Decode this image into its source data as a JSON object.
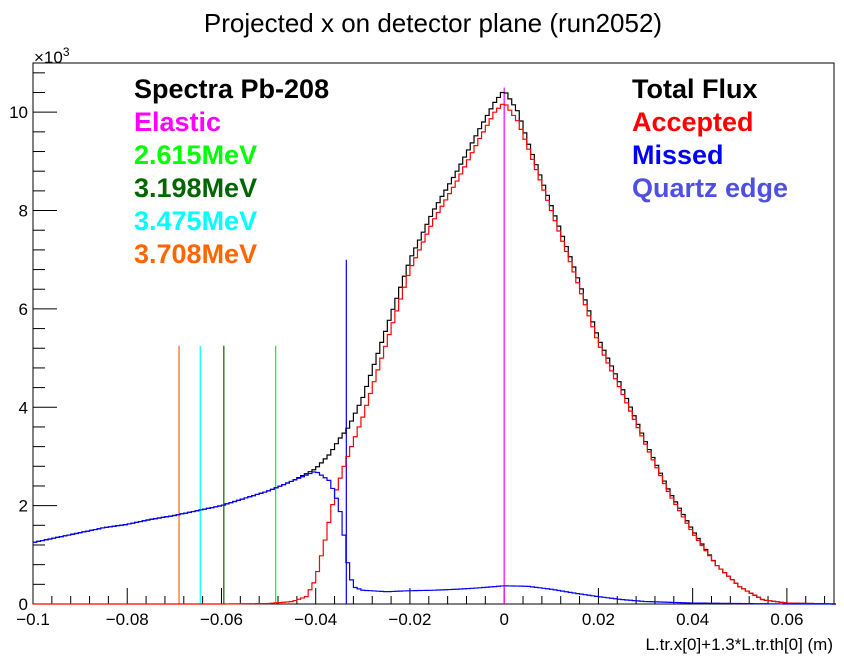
{
  "chart_data": {
    "type": "line",
    "title": "Projected x on detector plane (run2052)",
    "xlabel": "L.tr.x[0]+1.3*L.tr.th[0] (m)",
    "ylabel": "",
    "y_multiplier_label": "×10",
    "y_multiplier_exp": "3",
    "xlim": [
      -0.1,
      0.07
    ],
    "ylim": [
      0,
      11
    ],
    "x_ticks": [
      -0.1,
      -0.08,
      -0.06,
      -0.04,
      -0.02,
      0,
      0.02,
      0.04,
      0.06
    ],
    "x_tick_labels": [
      "−0.1",
      "−0.08",
      "−0.06",
      "−0.04",
      "−0.02",
      "0",
      "0.02",
      "0.04",
      "0.06"
    ],
    "y_ticks": [
      0,
      2,
      4,
      6,
      8,
      10
    ],
    "y_tick_labels": [
      "0",
      "2",
      "4",
      "6",
      "8",
      "10"
    ],
    "grid": false,
    "legend_left": {
      "title": "Spectra Pb-208",
      "title_color": "#000000",
      "entries": [
        {
          "label": "Elastic",
          "color": "#ff00ff"
        },
        {
          "label": "2.615MeV",
          "color": "#00ff00"
        },
        {
          "label": "3.198MeV",
          "color": "#006600"
        },
        {
          "label": "3.475MeV",
          "color": "#00ffff"
        },
        {
          "label": "3.708MeV",
          "color": "#ff6600"
        }
      ]
    },
    "legend_right": {
      "entries": [
        {
          "label": "Total Flux",
          "color": "#000000"
        },
        {
          "label": "Accepted",
          "color": "#ff0000"
        },
        {
          "label": "Missed",
          "color": "#0000ff"
        },
        {
          "label": "Quartz edge",
          "color": "#5050e0"
        }
      ]
    },
    "vertical_lines": [
      {
        "x": 0.0,
        "y_top": 10.5,
        "color": "#ff00ff"
      },
      {
        "x": -0.0485,
        "y_top": 5.25,
        "color": "#00ff00"
      },
      {
        "x": -0.0595,
        "y_top": 5.25,
        "color": "#006600"
      },
      {
        "x": -0.0645,
        "y_top": 5.25,
        "color": "#00ffff"
      },
      {
        "x": -0.069,
        "y_top": 5.25,
        "color": "#ff6600"
      },
      {
        "x": -0.0335,
        "y_top": 7.0,
        "color": "#0000ff"
      }
    ],
    "series": [
      {
        "name": "Total Flux",
        "color": "#000000",
        "x": [
          -0.1,
          -0.095,
          -0.09,
          -0.085,
          -0.08,
          -0.075,
          -0.07,
          -0.065,
          -0.06,
          -0.055,
          -0.05,
          -0.045,
          -0.04,
          -0.037,
          -0.035,
          -0.033,
          -0.03,
          -0.025,
          -0.02,
          -0.015,
          -0.01,
          -0.005,
          -0.002,
          0,
          0.003,
          0.005,
          0.01,
          0.015,
          0.02,
          0.025,
          0.03,
          0.035,
          0.04,
          0.045,
          0.05,
          0.055,
          0.06,
          0.07
        ],
        "y": [
          1.25,
          1.35,
          1.45,
          1.55,
          1.62,
          1.72,
          1.8,
          1.9,
          2.0,
          2.15,
          2.3,
          2.5,
          2.75,
          3.05,
          3.35,
          3.6,
          4.2,
          5.6,
          7.0,
          8.0,
          8.8,
          9.7,
          10.2,
          10.45,
          10.0,
          9.4,
          8.1,
          6.8,
          5.4,
          4.4,
          3.3,
          2.3,
          1.5,
          0.8,
          0.35,
          0.08,
          0.02,
          0.0
        ]
      },
      {
        "name": "Accepted",
        "color": "#ff0000",
        "x": [
          -0.1,
          -0.06,
          -0.05,
          -0.045,
          -0.042,
          -0.04,
          -0.038,
          -0.036,
          -0.034,
          -0.03,
          -0.025,
          -0.02,
          -0.015,
          -0.01,
          -0.005,
          -0.002,
          0,
          0.003,
          0.005,
          0.01,
          0.015,
          0.02,
          0.025,
          0.03,
          0.035,
          0.04,
          0.045,
          0.05,
          0.055,
          0.06,
          0.07
        ],
        "y": [
          0.0,
          0.0,
          0.01,
          0.05,
          0.15,
          0.5,
          1.3,
          2.2,
          2.8,
          3.8,
          5.3,
          6.8,
          7.8,
          8.6,
          9.5,
          10.0,
          10.2,
          9.8,
          9.3,
          8.0,
          6.7,
          5.3,
          4.3,
          3.25,
          2.25,
          1.45,
          0.8,
          0.35,
          0.08,
          0.02,
          0.0
        ]
      },
      {
        "name": "Missed",
        "color": "#0000ff",
        "x": [
          -0.1,
          -0.095,
          -0.09,
          -0.085,
          -0.08,
          -0.075,
          -0.07,
          -0.065,
          -0.06,
          -0.055,
          -0.05,
          -0.045,
          -0.04,
          -0.037,
          -0.035,
          -0.034,
          -0.033,
          -0.032,
          -0.03,
          -0.025,
          -0.02,
          -0.015,
          -0.01,
          -0.005,
          0,
          0.005,
          0.01,
          0.015,
          0.02,
          0.025,
          0.03,
          0.04,
          0.05,
          0.06,
          0.07
        ],
        "y": [
          1.25,
          1.35,
          1.45,
          1.55,
          1.62,
          1.72,
          1.8,
          1.9,
          2.0,
          2.15,
          2.3,
          2.5,
          2.7,
          2.5,
          2.0,
          1.4,
          0.7,
          0.35,
          0.28,
          0.25,
          0.27,
          0.28,
          0.3,
          0.33,
          0.37,
          0.36,
          0.3,
          0.22,
          0.15,
          0.09,
          0.05,
          0.02,
          0.01,
          0.0,
          0.0
        ]
      }
    ]
  }
}
